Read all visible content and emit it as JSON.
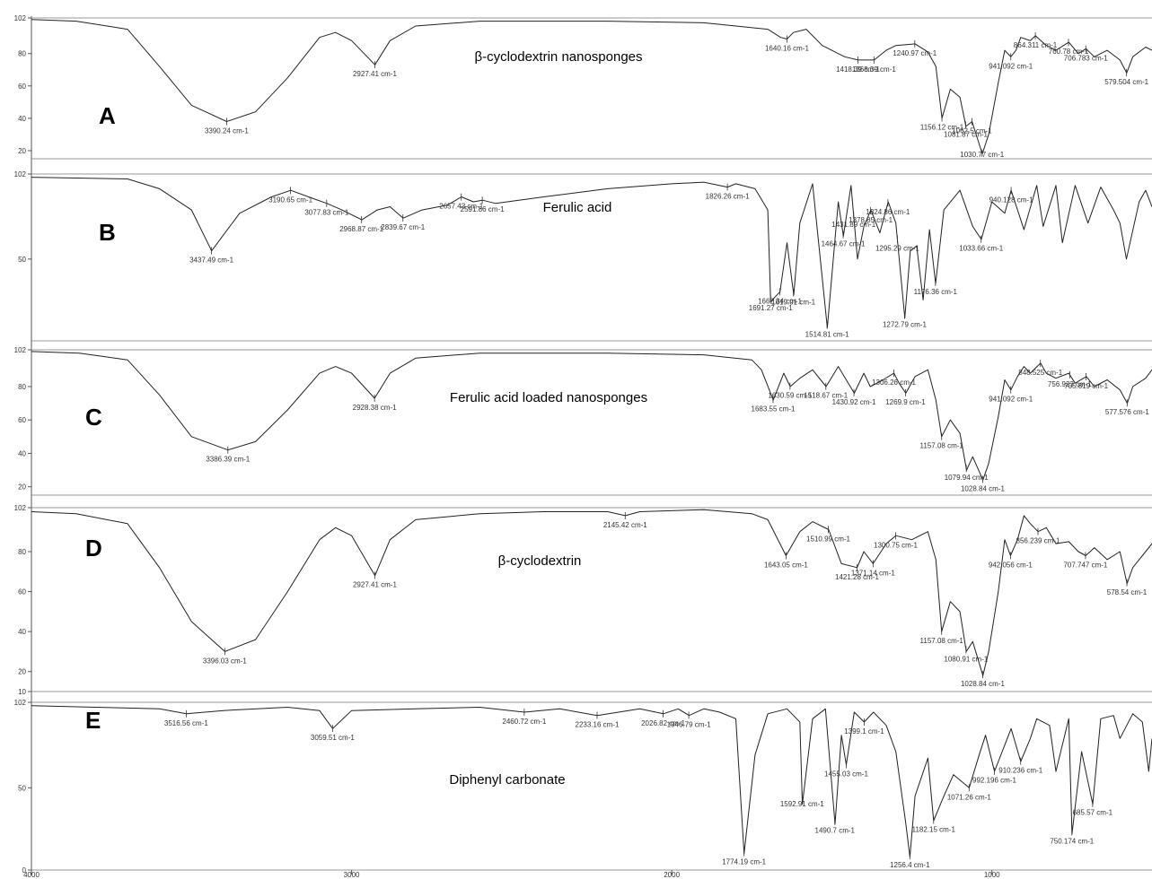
{
  "figure": {
    "x_axis": {
      "ticks": [
        4000,
        3000,
        2000,
        1000
      ],
      "tick_labels": [
        "4000",
        "3000",
        "2000",
        "1000"
      ]
    }
  },
  "chart_data": [
    {
      "type": "line",
      "panel_label": "A",
      "title": "β-cyclodextrin nanosponges",
      "xlim": [
        4000,
        500
      ],
      "ylim": [
        15,
        102
      ],
      "y_ticks": [
        20,
        40,
        60,
        80,
        102
      ],
      "series": [
        {
          "x": [
            4000,
            3860,
            3700,
            3600,
            3500,
            3390,
            3300,
            3200,
            3100,
            3050,
            3000,
            2927,
            2880,
            2800,
            2600,
            2200,
            1900,
            1700,
            1660,
            1640,
            1620,
            1580,
            1530,
            1460,
            1418,
            1368,
            1330,
            1300,
            1240,
            1200,
            1175,
            1156,
            1130,
            1100,
            1081,
            1062,
            1030,
            1010,
            980,
            960,
            941,
            925,
            910,
            880,
            864,
            830,
            800,
            760,
            730,
            706,
            680,
            640,
            600,
            579,
            560,
            520,
            500
          ],
          "y": [
            101,
            100,
            95,
            72,
            48,
            38,
            44,
            65,
            90,
            93,
            88,
            73,
            88,
            97,
            100,
            100,
            99,
            95,
            90,
            89,
            93,
            95,
            85,
            78,
            76,
            76,
            82,
            85,
            86,
            81,
            72,
            40,
            58,
            53,
            35,
            38,
            18,
            30,
            62,
            82,
            78,
            82,
            90,
            88,
            91,
            85,
            82,
            87,
            80,
            83,
            78,
            82,
            76,
            68,
            78,
            84,
            82
          ]
        }
      ],
      "peaks": [
        {
          "x": 3390.24,
          "label": "3390.24 cm-1"
        },
        {
          "x": 2927.41,
          "label": "2927.41 cm-1"
        },
        {
          "x": 1640.16,
          "label": "1640.16 cm-1"
        },
        {
          "x": 1418.39,
          "label": "1418.39 cm-1"
        },
        {
          "x": 1368.39,
          "label": "1368.39 cm-1"
        },
        {
          "x": 1240.97,
          "label": "1240.97 cm-1"
        },
        {
          "x": 1156.12,
          "label": "1156.12 cm-1"
        },
        {
          "x": 1081.87,
          "label": "1081.87 cm-1"
        },
        {
          "x": 1062.5,
          "label": "1062.5 cm-1"
        },
        {
          "x": 1030.77,
          "label": "1030.77 cm-1"
        },
        {
          "x": 941.092,
          "label": "941.092 cm-1"
        },
        {
          "x": 864.311,
          "label": "864.311 cm-1"
        },
        {
          "x": 760.78,
          "label": "760.78 cm-1"
        },
        {
          "x": 706.783,
          "label": "706.783 cm-1"
        },
        {
          "x": 579.504,
          "label": "579.504 cm-1"
        }
      ]
    },
    {
      "type": "line",
      "panel_label": "B",
      "title": "Ferulic acid",
      "xlim": [
        4000,
        500
      ],
      "ylim": [
        0,
        102
      ],
      "y_ticks": [
        50,
        102
      ],
      "series": [
        {
          "x": [
            4000,
            3700,
            3600,
            3500,
            3437,
            3350,
            3250,
            3190,
            3120,
            3077,
            3030,
            2968,
            2920,
            2880,
            2839,
            2780,
            2700,
            2657,
            2620,
            2591,
            2550,
            2400,
            2200,
            2000,
            1900,
            1826,
            1800,
            1740,
            1700,
            1691,
            1662,
            1640,
            1619,
            1600,
            1560,
            1514,
            1480,
            1464,
            1440,
            1420,
            1400,
            1378,
            1350,
            1324,
            1300,
            1272,
            1255,
            1235,
            1215,
            1195,
            1176,
            1150,
            1100,
            1060,
            1033,
            1000,
            960,
            940,
            900,
            860,
            840,
            800,
            780,
            740,
            700,
            660,
            620,
            600,
            580,
            540,
            520,
            500
          ],
          "y": [
            100,
            99,
            93,
            80,
            55,
            78,
            88,
            92,
            87,
            84,
            80,
            74,
            80,
            82,
            75,
            80,
            83,
            88,
            85,
            86,
            84,
            88,
            93,
            96,
            97,
            94,
            96,
            93,
            80,
            24,
            30,
            60,
            28,
            72,
            96,
            8,
            85,
            64,
            95,
            50,
            70,
            80,
            66,
            85,
            72,
            14,
            55,
            58,
            25,
            68,
            35,
            80,
            92,
            70,
            62,
            85,
            78,
            92,
            68,
            95,
            70,
            95,
            60,
            95,
            72,
            94,
            80,
            72,
            50,
            85,
            92,
            82
          ]
        }
      ],
      "peaks": [
        {
          "x": 3437.49,
          "label": "3437.49 cm-1"
        },
        {
          "x": 3190.65,
          "label": "3190.65 cm-1"
        },
        {
          "x": 3077.83,
          "label": "3077.83 cm-1"
        },
        {
          "x": 2968.87,
          "label": "2968.87 cm-1"
        },
        {
          "x": 2839.67,
          "label": "2839.67 cm-1"
        },
        {
          "x": 2657.43,
          "label": "2657.43 cm-1"
        },
        {
          "x": 2591.86,
          "label": "2591.86 cm-1"
        },
        {
          "x": 1826.26,
          "label": "1826.26 cm-1"
        },
        {
          "x": 1691.27,
          "label": "1691.27 cm-1"
        },
        {
          "x": 1662.34,
          "label": "1662.34 cm-1"
        },
        {
          "x": 1619.91,
          "label": "1619.91 cm-1"
        },
        {
          "x": 1514.81,
          "label": "1514.81 cm-1"
        },
        {
          "x": 1464.67,
          "label": "1464.67 cm-1"
        },
        {
          "x": 1431.89,
          "label": "1431.89 cm-1"
        },
        {
          "x": 1378.85,
          "label": "1378.85 cm-1"
        },
        {
          "x": 1324.86,
          "label": "1324.86 cm-1"
        },
        {
          "x": 1295.29,
          "label": "1295.29 cm-1"
        },
        {
          "x": 1272.79,
          "label": "1272.79 cm-1"
        },
        {
          "x": 1176.36,
          "label": "1176.36 cm-1"
        },
        {
          "x": 1033.66,
          "label": "1033.66 cm-1"
        },
        {
          "x": 940.128,
          "label": "940.128 cm-1"
        }
      ]
    },
    {
      "type": "line",
      "panel_label": "C",
      "title": "Ferulic acid loaded nanosponges",
      "xlim": [
        4000,
        500
      ],
      "ylim": [
        15,
        102
      ],
      "y_ticks": [
        20,
        40,
        60,
        80,
        102
      ],
      "series": [
        {
          "x": [
            4000,
            3850,
            3700,
            3600,
            3500,
            3386,
            3300,
            3200,
            3100,
            3050,
            3000,
            2928,
            2880,
            2800,
            2600,
            2200,
            1900,
            1750,
            1720,
            1683,
            1650,
            1630,
            1600,
            1560,
            1518,
            1480,
            1430,
            1400,
            1380,
            1340,
            1306,
            1290,
            1269,
            1240,
            1200,
            1175,
            1157,
            1130,
            1100,
            1079,
            1060,
            1028,
            1010,
            980,
            960,
            941,
            920,
            900,
            880,
            848,
            830,
            800,
            760,
            740,
            705,
            680,
            640,
            600,
            577,
            560,
            520,
            500
          ],
          "y": [
            101,
            100,
            96,
            75,
            50,
            42,
            47,
            66,
            88,
            92,
            88,
            73,
            88,
            97,
            100,
            100,
            99,
            96,
            90,
            72,
            88,
            80,
            85,
            90,
            80,
            92,
            76,
            88,
            80,
            84,
            88,
            82,
            76,
            86,
            90,
            72,
            50,
            60,
            52,
            30,
            38,
            24,
            34,
            62,
            84,
            78,
            86,
            92,
            88,
            94,
            88,
            85,
            88,
            82,
            86,
            80,
            84,
            78,
            70,
            80,
            85,
            90
          ]
        }
      ],
      "peaks": [
        {
          "x": 3386.39,
          "label": "3386.39 cm-1"
        },
        {
          "x": 2928.38,
          "label": "2928.38 cm-1"
        },
        {
          "x": 1683.55,
          "label": "1683.55 cm-1"
        },
        {
          "x": 1630.59,
          "label": "1630.59 cm-1"
        },
        {
          "x": 1518.67,
          "label": "1518.67 cm-1"
        },
        {
          "x": 1430.92,
          "label": "1430.92 cm-1"
        },
        {
          "x": 1306.26,
          "label": "1306.26 cm-1"
        },
        {
          "x": 1269.9,
          "label": "1269.9 cm-1"
        },
        {
          "x": 1157.08,
          "label": "1157.08 cm-1"
        },
        {
          "x": 1079.94,
          "label": "1079.94 cm-1"
        },
        {
          "x": 1028.84,
          "label": "1028.84 cm-1"
        },
        {
          "x": 941.092,
          "label": "941.092 cm-1"
        },
        {
          "x": 848.525,
          "label": "848.525 cm-1"
        },
        {
          "x": 756.923,
          "label": "756.923 cm-1"
        },
        {
          "x": 705.819,
          "label": "705.819 cm-1"
        },
        {
          "x": 577.576,
          "label": "577.576 cm-1"
        }
      ]
    },
    {
      "type": "line",
      "panel_label": "D",
      "title": "β-cyclodextrin",
      "xlim": [
        4000,
        500
      ],
      "ylim": [
        10,
        102
      ],
      "y_ticks": [
        10,
        20,
        40,
        60,
        80,
        102
      ],
      "series": [
        {
          "x": [
            4000,
            3860,
            3700,
            3600,
            3500,
            3396,
            3300,
            3200,
            3100,
            3050,
            3000,
            2927,
            2880,
            2800,
            2600,
            2400,
            2200,
            2145,
            2100,
            1900,
            1750,
            1700,
            1643,
            1600,
            1560,
            1510,
            1470,
            1421,
            1400,
            1371,
            1330,
            1300,
            1250,
            1200,
            1175,
            1157,
            1130,
            1100,
            1080,
            1060,
            1028,
            1010,
            980,
            960,
            942,
            920,
            900,
            880,
            856,
            830,
            800,
            760,
            730,
            707,
            680,
            640,
            600,
            578,
            560,
            520,
            500
          ],
          "y": [
            100,
            99,
            94,
            72,
            45,
            30,
            36,
            60,
            86,
            92,
            88,
            68,
            86,
            96,
            99,
            100,
            100,
            98,
            100,
            101,
            99,
            96,
            78,
            90,
            95,
            91,
            74,
            72,
            80,
            74,
            84,
            88,
            86,
            90,
            76,
            40,
            55,
            50,
            30,
            35,
            18,
            30,
            60,
            86,
            78,
            86,
            98,
            94,
            90,
            92,
            84,
            85,
            80,
            78,
            82,
            76,
            80,
            64,
            72,
            80,
            84
          ]
        }
      ],
      "peaks": [
        {
          "x": 3396.03,
          "label": "3396.03 cm-1"
        },
        {
          "x": 2927.41,
          "label": "2927.41 cm-1"
        },
        {
          "x": 2145.42,
          "label": "2145.42 cm-1"
        },
        {
          "x": 1643.05,
          "label": "1643.05 cm-1"
        },
        {
          "x": 1510.99,
          "label": "1510.99 cm-1"
        },
        {
          "x": 1421.28,
          "label": "1421.28 cm-1"
        },
        {
          "x": 1371.14,
          "label": "1371.14 cm-1"
        },
        {
          "x": 1300.75,
          "label": "1300.75 cm-1"
        },
        {
          "x": 1157.08,
          "label": "1157.08 cm-1"
        },
        {
          "x": 1080.91,
          "label": "1080.91 cm-1"
        },
        {
          "x": 1028.84,
          "label": "1028.84 cm-1"
        },
        {
          "x": 942.056,
          "label": "942.056 cm-1"
        },
        {
          "x": 856.239,
          "label": "856.239 cm-1"
        },
        {
          "x": 707.747,
          "label": "707.747 cm-1"
        },
        {
          "x": 578.54,
          "label": "578.54 cm-1"
        }
      ]
    },
    {
      "type": "line",
      "panel_label": "E",
      "title": "Diphenyl carbonate",
      "xlim": [
        4000,
        500
      ],
      "ylim": [
        0,
        102
      ],
      "y_ticks": [
        0,
        50,
        102
      ],
      "series": [
        {
          "x": [
            4000,
            3800,
            3600,
            3516,
            3400,
            3200,
            3100,
            3059,
            3000,
            2800,
            2600,
            2460,
            2350,
            2233,
            2100,
            2026,
            1980,
            1946,
            1900,
            1850,
            1800,
            1774,
            1740,
            1700,
            1640,
            1600,
            1592,
            1560,
            1520,
            1490,
            1470,
            1455,
            1430,
            1399,
            1370,
            1330,
            1300,
            1270,
            1256,
            1240,
            1200,
            1182,
            1150,
            1120,
            1071,
            1040,
            1020,
            992,
            960,
            940,
            910,
            880,
            860,
            820,
            800,
            760,
            750,
            720,
            685,
            660,
            620,
            600,
            560,
            530,
            510,
            500
          ],
          "y": [
            100,
            99,
            98,
            95,
            97,
            99,
            97,
            86,
            97,
            98,
            99,
            96,
            98,
            94,
            98,
            95,
            98,
            94,
            98,
            96,
            92,
            10,
            70,
            95,
            98,
            90,
            40,
            92,
            98,
            28,
            82,
            64,
            96,
            90,
            96,
            88,
            72,
            30,
            8,
            45,
            68,
            30,
            45,
            58,
            50,
            70,
            82,
            60,
            76,
            86,
            66,
            80,
            92,
            88,
            60,
            92,
            22,
            72,
            40,
            92,
            94,
            80,
            95,
            90,
            60,
            80
          ]
        }
      ],
      "peaks": [
        {
          "x": 3516.56,
          "label": "3516.56 cm-1"
        },
        {
          "x": 3059.51,
          "label": "3059.51 cm-1"
        },
        {
          "x": 2460.72,
          "label": "2460.72 cm-1"
        },
        {
          "x": 2233.16,
          "label": "2233.16 cm-1"
        },
        {
          "x": 2026.82,
          "label": "2026.82 cm-1"
        },
        {
          "x": 1946.79,
          "label": "1946.79 cm-1"
        },
        {
          "x": 1774.19,
          "label": "1774.19 cm-1"
        },
        {
          "x": 1592.91,
          "label": "1592.91 cm-1"
        },
        {
          "x": 1490.7,
          "label": "1490.7 cm-1"
        },
        {
          "x": 1455.03,
          "label": "1455.03 cm-1"
        },
        {
          "x": 1399.1,
          "label": "1399.1 cm-1"
        },
        {
          "x": 1256.4,
          "label": "1256.4 cm-1"
        },
        {
          "x": 1182.15,
          "label": "1182.15 cm-1"
        },
        {
          "x": 1071.26,
          "label": "1071.26 cm-1"
        },
        {
          "x": 992.196,
          "label": "992.196 cm-1"
        },
        {
          "x": 910.236,
          "label": "910.236 cm-1"
        },
        {
          "x": 750.174,
          "label": "750.174 cm-1"
        },
        {
          "x": 685.57,
          "label": "685.57 cm-1"
        }
      ]
    }
  ]
}
